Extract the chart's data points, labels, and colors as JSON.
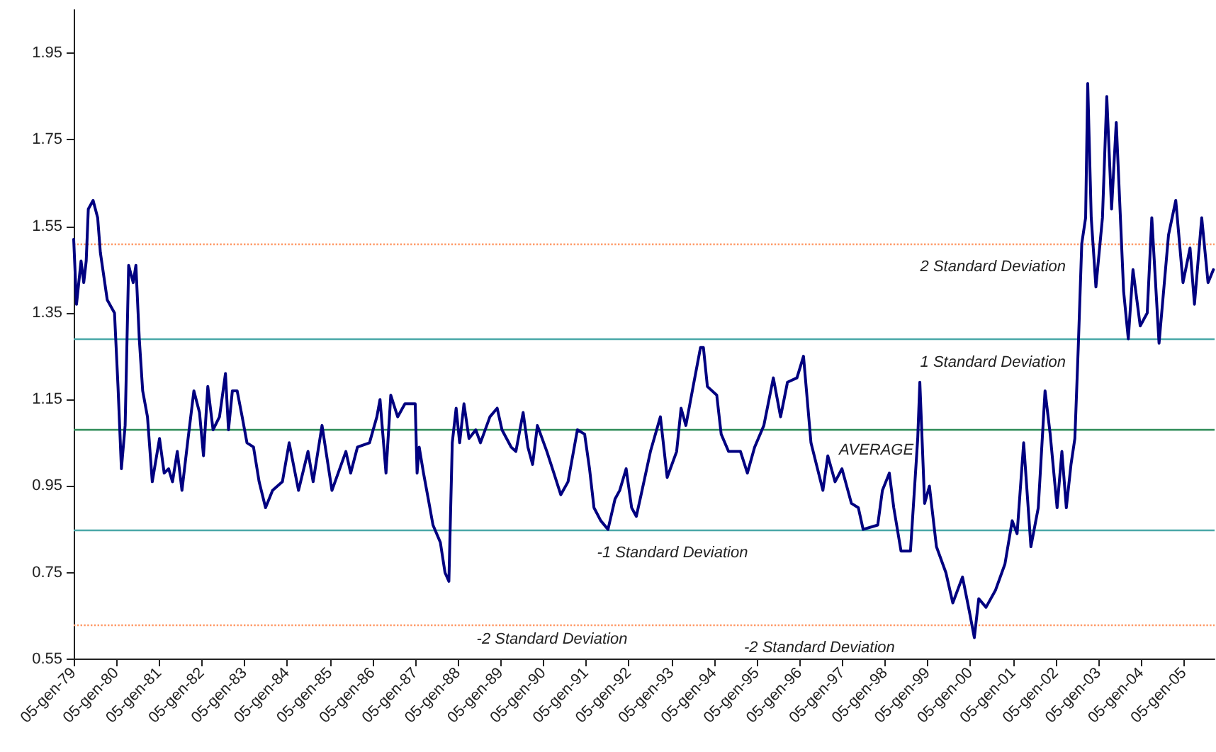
{
  "chart_data": {
    "type": "line",
    "x": [
      "1979-01-05",
      "1979-01-29",
      "1979-03-09",
      "1979-04-01",
      "1979-04-22",
      "1979-05-10",
      "1979-06-20",
      "1979-07-29",
      "1979-08-21",
      "1979-10-19",
      "1979-12-20",
      "1980-01-19",
      "1980-02-17",
      "1980-03-20",
      "1980-04-19",
      "1980-05-28",
      "1980-06-20",
      "1980-07-19",
      "1980-08-17",
      "1980-09-27",
      "1980-11-07",
      "1981-01-08",
      "1981-02-17",
      "1981-03-27",
      "1981-04-29",
      "1981-06-09",
      "1981-07-19",
      "1981-09-05",
      "1981-10-29",
      "1981-12-16",
      "1982-01-19",
      "1982-02-25",
      "1982-04-11",
      "1982-06-05",
      "1982-07-26",
      "1982-08-21",
      "1982-09-23",
      "1982-11-03",
      "1982-12-16",
      "1983-01-26",
      "1983-03-23",
      "1983-05-10",
      "1983-07-04",
      "1983-09-02",
      "1983-11-25",
      "1984-01-22",
      "1984-04-11",
      "1984-07-01",
      "1984-08-14",
      "1984-10-29",
      "1985-01-22",
      "1985-05-21",
      "1985-07-01",
      "1985-08-28",
      "1985-12-09",
      "1986-02-10",
      "1986-03-09",
      "1986-04-29",
      "1986-06-09",
      "1986-08-07",
      "1986-10-08",
      "1986-11-25",
      "1987-01-04",
      "1987-01-20",
      "1987-02-07",
      "1987-03-16",
      "1987-04-26",
      "1987-06-05",
      "1987-08-07",
      "1987-09-16",
      "1987-10-19",
      "1987-11-17",
      "1987-12-20",
      "1988-01-19",
      "1988-02-25",
      "1988-04-08",
      "1988-06-05",
      "1988-07-15",
      "1988-10-04",
      "1988-12-05",
      "1989-01-15",
      "1989-04-04",
      "1989-05-14",
      "1989-07-15",
      "1989-08-25",
      "1989-10-04",
      "1989-11-14",
      "1990-02-03",
      "1990-04-04",
      "1990-06-02",
      "1990-08-03",
      "1990-10-22",
      "1990-12-23",
      "1991-02-03",
      "1991-03-13",
      "1991-05-10",
      "1991-07-11",
      "1991-09-09",
      "1991-10-19",
      "1991-12-13",
      "1992-01-29",
      "1992-03-09",
      "1992-04-19",
      "1992-07-08",
      "1992-10-01",
      "1992-11-28",
      "1993-02-17",
      "1993-03-27",
      "1993-05-07",
      "1993-07-08",
      "1993-09-09",
      "1993-10-04",
      "1993-11-07",
      "1994-01-26",
      "1994-03-05",
      "1994-05-07",
      "1994-08-17",
      "1994-10-15",
      "1994-12-16",
      "1995-03-05",
      "1995-05-25",
      "1995-07-26",
      "1995-09-23",
      "1995-12-13",
      "1996-02-07",
      "1996-04-11",
      "1996-07-22",
      "1996-09-02",
      "1996-11-03",
      "1997-01-01",
      "1997-03-23",
      "1997-05-21",
      "1997-07-01",
      "1997-11-03",
      "1997-12-13",
      "1998-02-10",
      "1998-03-20",
      "1998-05-21",
      "1998-08-10",
      "1998-10-11",
      "1998-10-29",
      "1998-12-09",
      "1999-01-19",
      "1999-03-20",
      "1999-06-09",
      "1999-08-07",
      "1999-10-29",
      "1999-12-27",
      "2000-02-07",
      "2000-03-16",
      "2000-05-17",
      "2000-08-07",
      "2000-10-26",
      "2000-12-27",
      "2001-02-07",
      "2001-04-04",
      "2001-06-05",
      "2001-08-07",
      "2001-10-04",
      "2001-11-17",
      "2002-01-15",
      "2002-02-25",
      "2002-04-04",
      "2002-05-14",
      "2002-06-16",
      "2002-07-15",
      "2002-08-14",
      "2002-09-16",
      "2002-10-04",
      "2002-11-03",
      "2002-12-13",
      "2003-02-07",
      "2003-03-16",
      "2003-04-26",
      "2003-06-05",
      "2003-08-07",
      "2003-09-16",
      "2003-10-26",
      "2003-12-27",
      "2004-02-25",
      "2004-04-04",
      "2004-06-05",
      "2004-08-25",
      "2004-10-26",
      "2004-12-27",
      "2005-02-25",
      "2005-04-04",
      "2005-06-05",
      "2005-07-29",
      "2005-09-13"
    ],
    "series": [
      {
        "color": "#000080",
        "values": [
          1.52,
          1.37,
          1.47,
          1.42,
          1.47,
          1.59,
          1.61,
          1.57,
          1.49,
          1.38,
          1.35,
          1.18,
          0.99,
          1.09,
          1.46,
          1.42,
          1.46,
          1.29,
          1.17,
          1.11,
          0.96,
          1.06,
          0.98,
          0.99,
          0.96,
          1.03,
          0.94,
          1.05,
          1.17,
          1.12,
          1.02,
          1.18,
          1.08,
          1.11,
          1.21,
          1.08,
          1.17,
          1.17,
          1.11,
          1.05,
          1.04,
          0.96,
          0.9,
          0.94,
          0.96,
          1.05,
          0.94,
          1.03,
          0.96,
          1.09,
          0.94,
          1.03,
          0.98,
          1.04,
          1.05,
          1.11,
          1.15,
          0.98,
          1.16,
          1.11,
          1.14,
          1.14,
          1.14,
          0.98,
          1.04,
          0.98,
          0.92,
          0.86,
          0.82,
          0.75,
          0.73,
          1.05,
          1.13,
          1.05,
          1.14,
          1.06,
          1.08,
          1.05,
          1.11,
          1.13,
          1.08,
          1.04,
          1.03,
          1.12,
          1.04,
          1.0,
          1.09,
          1.03,
          0.98,
          0.93,
          0.96,
          1.08,
          1.07,
          0.99,
          0.9,
          0.87,
          0.85,
          0.92,
          0.94,
          0.99,
          0.9,
          0.88,
          0.93,
          1.03,
          1.11,
          0.97,
          1.03,
          1.13,
          1.09,
          1.18,
          1.27,
          1.27,
          1.18,
          1.16,
          1.07,
          1.03,
          1.03,
          0.98,
          1.04,
          1.09,
          1.2,
          1.11,
          1.19,
          1.2,
          1.25,
          1.05,
          0.94,
          1.02,
          0.96,
          0.99,
          0.91,
          0.9,
          0.85,
          0.86,
          0.94,
          0.98,
          0.9,
          0.8,
          0.8,
          1.06,
          1.19,
          0.91,
          0.95,
          0.81,
          0.75,
          0.68,
          0.74,
          0.66,
          0.6,
          0.69,
          0.67,
          0.71,
          0.77,
          0.87,
          0.84,
          1.05,
          0.81,
          0.9,
          1.17,
          1.07,
          0.9,
          1.03,
          0.9,
          1.0,
          1.06,
          1.27,
          1.51,
          1.57,
          1.88,
          1.57,
          1.41,
          1.57,
          1.85,
          1.59,
          1.79,
          1.4,
          1.29,
          1.45,
          1.32,
          1.35,
          1.57,
          1.28,
          1.53,
          1.61,
          1.42,
          1.5,
          1.37,
          1.57,
          1.42,
          1.45
        ]
      }
    ],
    "xlim": [
      "1979-01-05",
      "2005-09-23"
    ],
    "xticks": [
      {
        "value": "1979-01-05",
        "label": "05-gen-79"
      },
      {
        "value": "1980-01-05",
        "label": "05-gen-80"
      },
      {
        "value": "1981-01-05",
        "label": "05-gen-81"
      },
      {
        "value": "1982-01-05",
        "label": "05-gen-82"
      },
      {
        "value": "1983-01-05",
        "label": "05-gen-83"
      },
      {
        "value": "1984-01-05",
        "label": "05-gen-84"
      },
      {
        "value": "1985-01-05",
        "label": "05-gen-85"
      },
      {
        "value": "1986-01-05",
        "label": "05-gen-86"
      },
      {
        "value": "1987-01-05",
        "label": "05-gen-87"
      },
      {
        "value": "1988-01-05",
        "label": "05-gen-88"
      },
      {
        "value": "1989-01-05",
        "label": "05-gen-89"
      },
      {
        "value": "1990-01-05",
        "label": "05-gen-90"
      },
      {
        "value": "1991-01-05",
        "label": "05-gen-91"
      },
      {
        "value": "1992-01-05",
        "label": "05-gen-92"
      },
      {
        "value": "1993-01-05",
        "label": "05-gen-93"
      },
      {
        "value": "1994-01-05",
        "label": "05-gen-94"
      },
      {
        "value": "1995-01-05",
        "label": "05-gen-95"
      },
      {
        "value": "1996-01-05",
        "label": "05-gen-96"
      },
      {
        "value": "1997-01-05",
        "label": "05-gen-97"
      },
      {
        "value": "1998-01-05",
        "label": "05-gen-98"
      },
      {
        "value": "1999-01-05",
        "label": "05-gen-99"
      },
      {
        "value": "2000-01-05",
        "label": "05-gen-00"
      },
      {
        "value": "2001-01-05",
        "label": "05-gen-01"
      },
      {
        "value": "2002-01-05",
        "label": "05-gen-02"
      },
      {
        "value": "2003-01-05",
        "label": "05-gen-03"
      },
      {
        "value": "2004-01-05",
        "label": "05-gen-04"
      },
      {
        "value": "2005-01-05",
        "label": "05-gen-05"
      }
    ],
    "ylim": [
      0.55,
      2.05
    ],
    "yticks": [
      0.55,
      0.75,
      0.95,
      1.15,
      1.35,
      1.55,
      1.75,
      1.95
    ],
    "ref_lines": [
      {
        "axis": "y",
        "value": 1.514,
        "label": "2 Standard Deviation",
        "color": "#ff9966",
        "line_style": "dotted"
      },
      {
        "axis": "y",
        "value": 1.294,
        "label": "1 Standard Deviation",
        "color": "#4aa8a8",
        "line_style": "solid"
      },
      {
        "axis": "y",
        "value": 1.076,
        "label": "AVERAGE",
        "color": "#2e8b57",
        "line_style": "solid"
      },
      {
        "axis": "y",
        "value": 0.854,
        "label": "-1 Standard Deviation",
        "color": "#4aa8a8",
        "line_style": "solid"
      },
      {
        "axis": "y",
        "value": 0.633,
        "label": "-2 Standard Deviation",
        "color": "#ff9966",
        "line_style": "dotted"
      }
    ],
    "annotations": [
      "-2 Standard Deviation"
    ],
    "grid": false,
    "marker": "none",
    "line_style": "solid"
  }
}
